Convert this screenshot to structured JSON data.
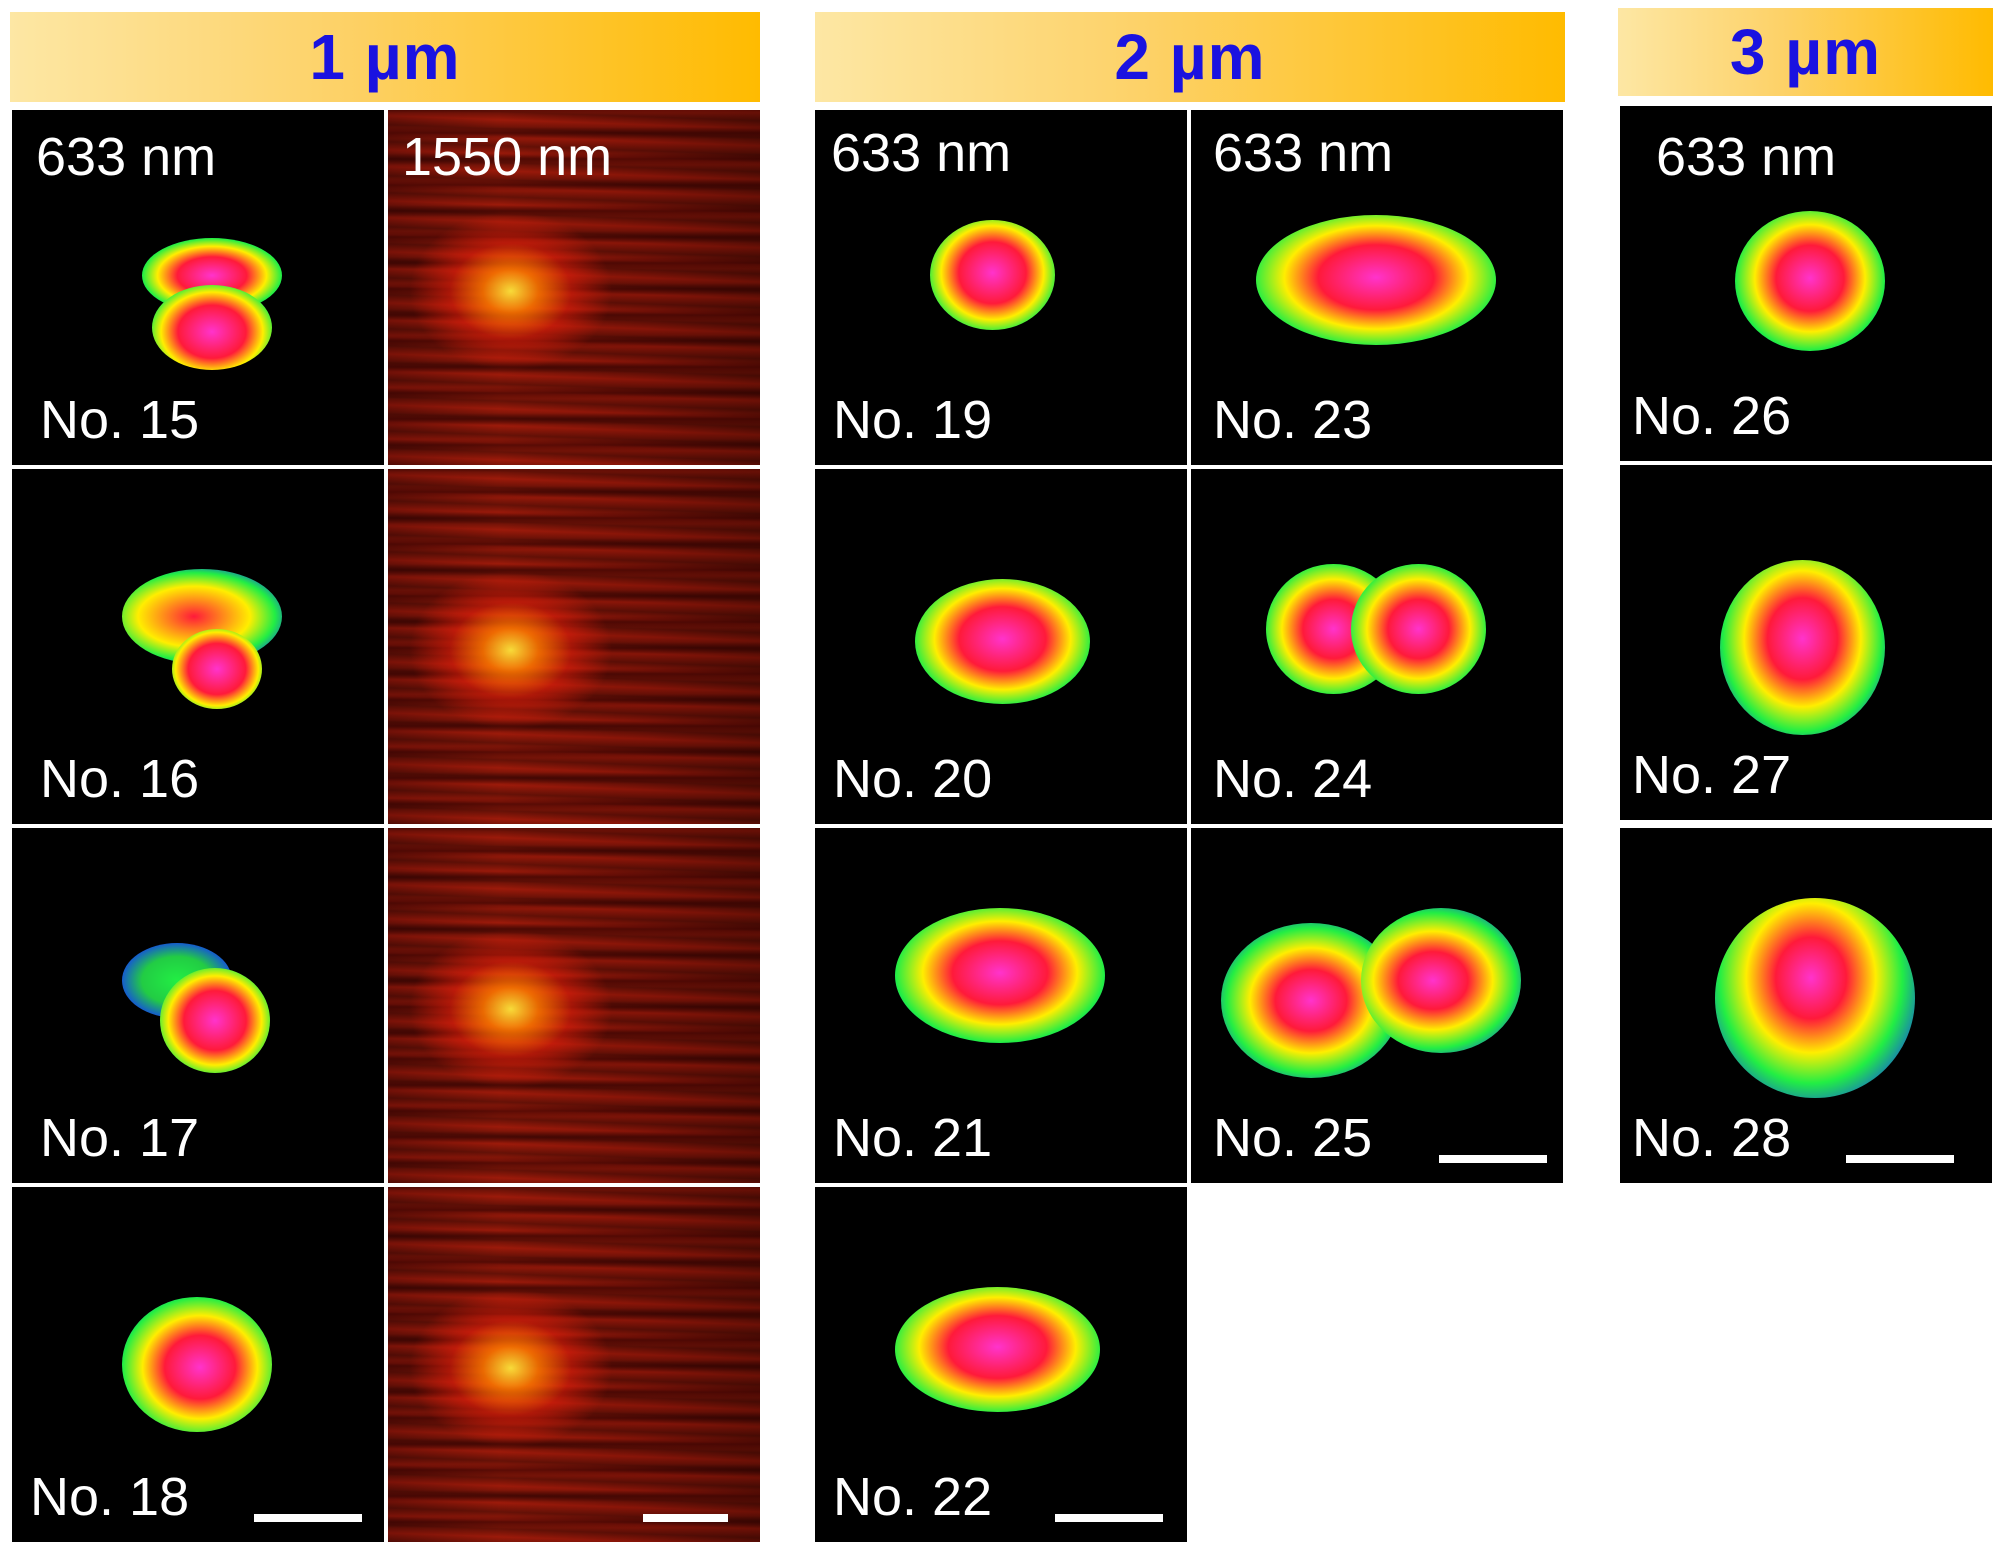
{
  "groups": [
    {
      "label": "1 µm",
      "columns": [
        "633 nm",
        "1550 nm"
      ],
      "samples": [
        "No. 15",
        "No. 16",
        "No. 17",
        "No. 18"
      ]
    },
    {
      "label": "2 µm",
      "columns": [
        "633 nm",
        "633 nm"
      ],
      "samples_left": [
        "No. 19",
        "No. 20",
        "No. 21",
        "No. 22"
      ],
      "samples_right": [
        "No. 23",
        "No. 24",
        "No. 25"
      ]
    },
    {
      "label": "3 µm",
      "columns": [
        "633 nm"
      ],
      "samples": [
        "No. 26",
        "No. 27",
        "No. 28"
      ]
    }
  ],
  "colors": {
    "banner_text": "#1a12e0",
    "banner_gradient": [
      "#fde7a4",
      "#ffbb00"
    ],
    "tile_bg": "#000000",
    "label": "#ffffff"
  }
}
